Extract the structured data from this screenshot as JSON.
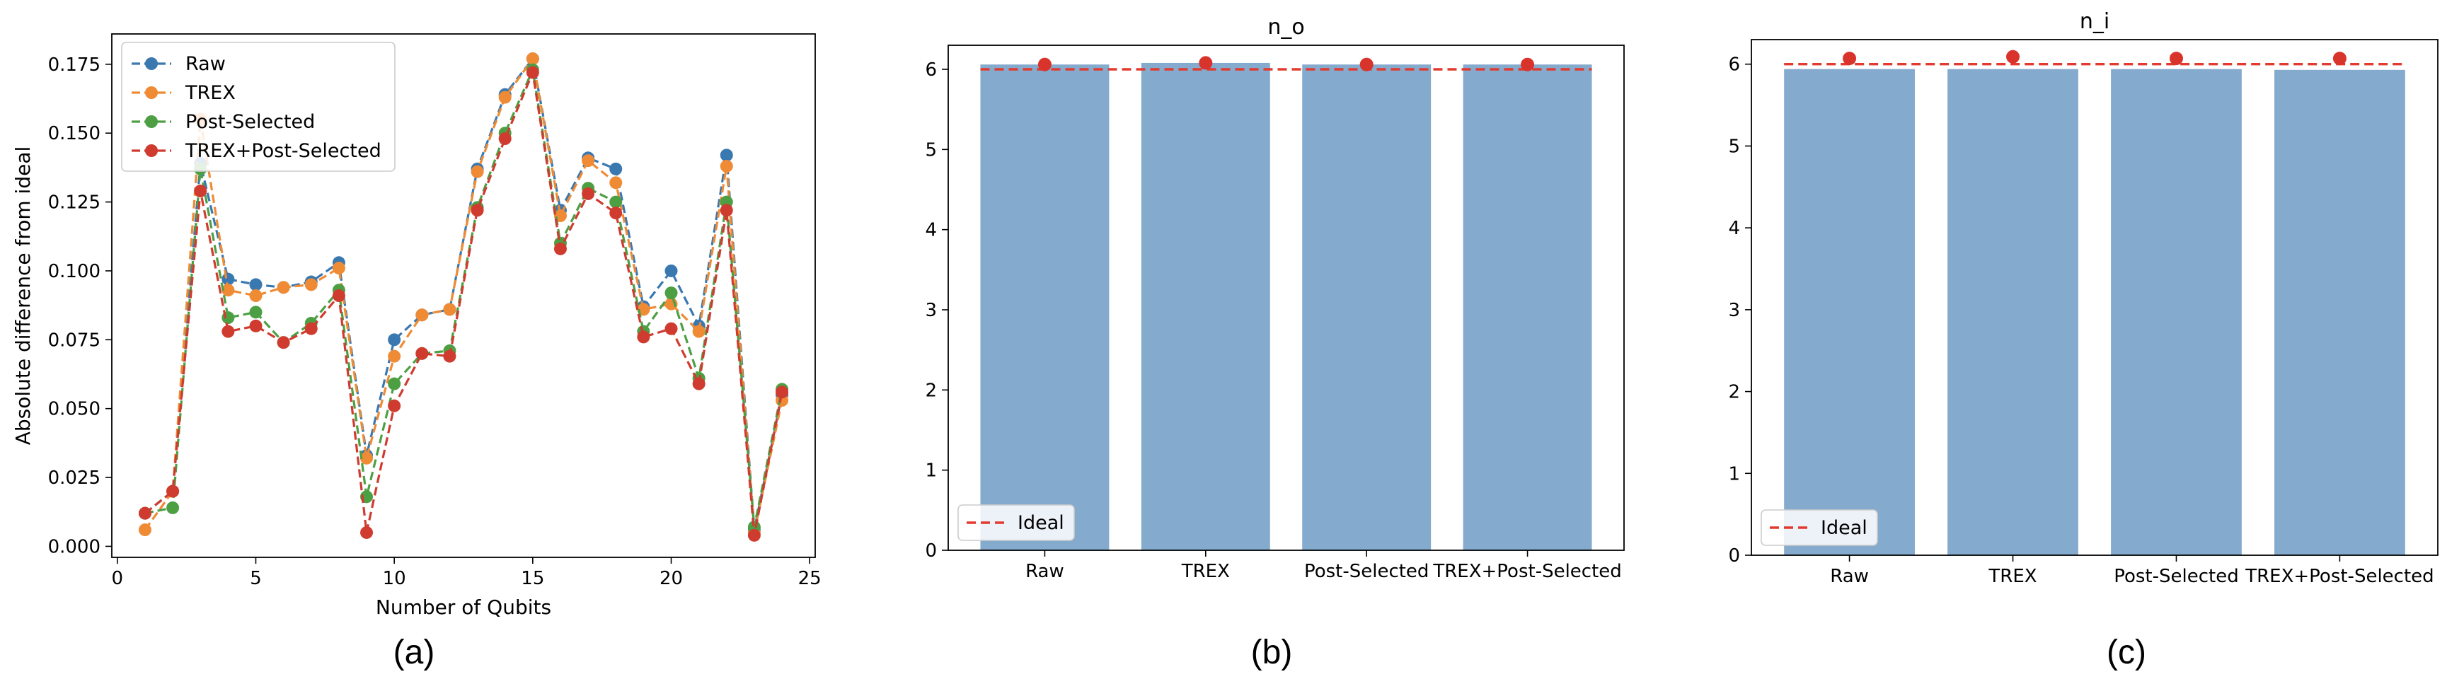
{
  "chart_data": [
    {
      "type": "line",
      "panel_label": "(a)",
      "title": "",
      "xlabel": "Number of Qubits",
      "ylabel": "Absolute difference from ideal",
      "xlim": [
        -0.2,
        25.2
      ],
      "ylim": [
        -0.004,
        0.186
      ],
      "xticks": [
        0,
        5,
        10,
        15,
        20,
        25
      ],
      "yticks": [
        0.0,
        0.025,
        0.05,
        0.075,
        0.1,
        0.125,
        0.15,
        0.175
      ],
      "ytick_labels": [
        "0.000",
        "0.025",
        "0.050",
        "0.075",
        "0.100",
        "0.125",
        "0.150",
        "0.175"
      ],
      "legend_loc": "upper left",
      "x": [
        1,
        2,
        3,
        4,
        5,
        6,
        7,
        8,
        9,
        10,
        11,
        12,
        13,
        14,
        15,
        16,
        17,
        18,
        19,
        20,
        21,
        22,
        23,
        24
      ],
      "series": [
        {
          "name": "Raw",
          "color": "#3a78b0",
          "values": [
            0.012,
            0.02,
            0.139,
            0.097,
            0.095,
            0.094,
            0.096,
            0.103,
            0.033,
            0.075,
            0.084,
            0.086,
            0.137,
            0.164,
            0.177,
            0.122,
            0.141,
            0.137,
            0.087,
            0.1,
            0.08,
            0.142,
            0.006,
            0.055
          ]
        },
        {
          "name": "TREX",
          "color": "#ef8b35",
          "values": [
            0.006,
            0.02,
            0.155,
            0.093,
            0.091,
            0.094,
            0.095,
            0.101,
            0.032,
            0.069,
            0.084,
            0.086,
            0.136,
            0.163,
            0.177,
            0.12,
            0.14,
            0.132,
            0.086,
            0.088,
            0.078,
            0.138,
            0.005,
            0.053
          ]
        },
        {
          "name": "Post-Selected",
          "color": "#4d9f44",
          "values": [
            0.012,
            0.014,
            0.137,
            0.083,
            0.085,
            0.074,
            0.081,
            0.093,
            0.018,
            0.059,
            0.07,
            0.071,
            0.123,
            0.15,
            0.173,
            0.11,
            0.13,
            0.125,
            0.078,
            0.092,
            0.061,
            0.125,
            0.007,
            0.057
          ]
        },
        {
          "name": "TREX+Post-Selected",
          "color": "#d03b30",
          "values": [
            0.012,
            0.02,
            0.129,
            0.078,
            0.08,
            0.074,
            0.079,
            0.091,
            0.005,
            0.051,
            0.07,
            0.069,
            0.122,
            0.148,
            0.172,
            0.108,
            0.128,
            0.121,
            0.076,
            0.079,
            0.059,
            0.122,
            0.004,
            0.056
          ]
        }
      ]
    },
    {
      "type": "bar",
      "panel_label": "(b)",
      "title": "n_o",
      "xlabel": "",
      "ylabel": "",
      "categories": [
        "Raw",
        "TREX",
        "Post-Selected",
        "TREX+Post-Selected"
      ],
      "values": [
        6.06,
        6.08,
        6.06,
        6.06
      ],
      "marker_values": [
        6.06,
        6.08,
        6.06,
        6.06
      ],
      "ideal": 6,
      "ideal_label": "Ideal",
      "ylim": [
        0,
        6.3
      ],
      "yticks": [
        0,
        1,
        2,
        3,
        4,
        5,
        6
      ],
      "bar_color": "#84aacd",
      "marker_color": "#d9342b",
      "ideal_color": "#e23a2e",
      "legend_loc": "lower left"
    },
    {
      "type": "bar",
      "panel_label": "(c)",
      "title": "n_i",
      "xlabel": "",
      "ylabel": "",
      "categories": [
        "Raw",
        "TREX",
        "Post-Selected",
        "TREX+Post-Selected"
      ],
      "values": [
        5.94,
        5.94,
        5.94,
        5.93
      ],
      "marker_values": [
        6.07,
        6.09,
        6.07,
        6.07
      ],
      "ideal": 6,
      "ideal_label": "Ideal",
      "ylim": [
        0,
        6.3
      ],
      "yticks": [
        0,
        1,
        2,
        3,
        4,
        5,
        6
      ],
      "bar_color": "#84aacd",
      "marker_color": "#d9342b",
      "ideal_color": "#e23a2e",
      "legend_loc": "lower left"
    }
  ]
}
